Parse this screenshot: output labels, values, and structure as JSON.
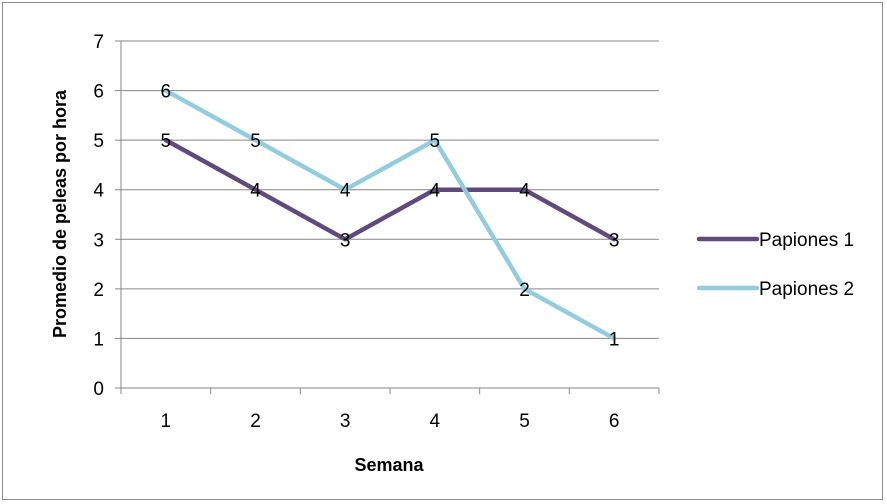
{
  "chart_data": {
    "type": "line",
    "title": "",
    "xlabel": "Semana",
    "ylabel": "Promedio de peleas por hora",
    "categories": [
      "1",
      "2",
      "3",
      "4",
      "5",
      "6"
    ],
    "ylim": [
      0,
      7
    ],
    "y_ticks": [
      "0",
      "1",
      "2",
      "3",
      "4",
      "5",
      "6",
      "7"
    ],
    "grid": "horizontal",
    "legend_position": "right",
    "series": [
      {
        "name": "Papiones 1",
        "values": [
          5,
          4,
          3,
          4,
          4,
          3
        ],
        "color": "#604a7b"
      },
      {
        "name": "Papiones 2",
        "values": [
          6,
          5,
          4,
          5,
          2,
          1
        ],
        "color": "#93cddd"
      }
    ]
  }
}
